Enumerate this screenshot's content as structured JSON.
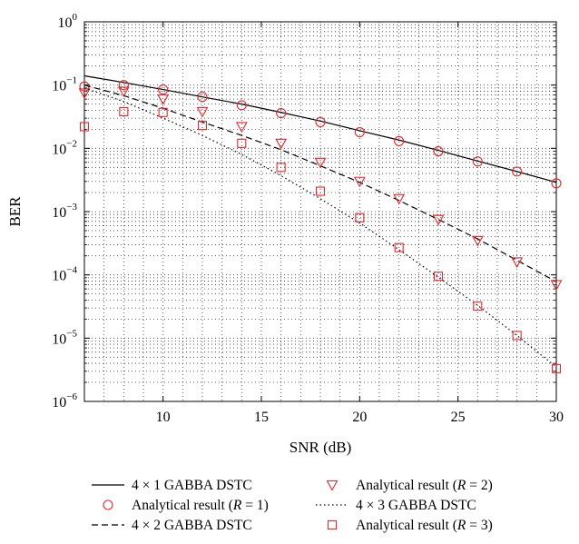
{
  "chart_data": {
    "type": "line",
    "xlabel": "SNR (dB)",
    "ylabel": "BER",
    "xlim": [
      6,
      30
    ],
    "ylim": [
      1e-06,
      1
    ],
    "yscale": "log",
    "grid": true,
    "x_ticks": [
      {
        "value": 10,
        "label": "10"
      },
      {
        "value": 15,
        "label": "15"
      },
      {
        "value": 20,
        "label": "20"
      },
      {
        "value": 25,
        "label": "25"
      },
      {
        "value": 30,
        "label": "30"
      }
    ],
    "y_ticks": [
      {
        "value": 1,
        "base": "10",
        "exp": "0"
      },
      {
        "value": 0.1,
        "base": "10",
        "exp": "−1"
      },
      {
        "value": 0.01,
        "base": "10",
        "exp": "−2"
      },
      {
        "value": 0.001,
        "base": "10",
        "exp": "−3"
      },
      {
        "value": 0.0001,
        "base": "10",
        "exp": "−4"
      },
      {
        "value": 1e-05,
        "base": "10",
        "exp": "−5"
      },
      {
        "value": 1e-06,
        "base": "10",
        "exp": "−6"
      }
    ],
    "legend_position": "bottom",
    "series": [
      {
        "name": "4 × 1 GABBA DSTC",
        "kind": "line",
        "dash": "solid",
        "color": "#000000",
        "x": [
          6,
          8,
          10,
          12,
          14,
          16,
          18,
          20,
          22,
          24,
          26,
          28,
          30
        ],
        "y": [
          0.14,
          0.11,
          0.085,
          0.065,
          0.05,
          0.037,
          0.027,
          0.019,
          0.0135,
          0.0093,
          0.0063,
          0.0043,
          0.0029
        ]
      },
      {
        "name": "Analytical result (R = 1)",
        "kind": "marker",
        "marker": "circle",
        "color": "#e8262b",
        "x": [
          6,
          8,
          10,
          12,
          14,
          16,
          18,
          20,
          22,
          24,
          26,
          28,
          30
        ],
        "y": [
          0.095,
          0.1,
          0.085,
          0.065,
          0.048,
          0.036,
          0.026,
          0.018,
          0.013,
          0.009,
          0.0062,
          0.0043,
          0.0028
        ]
      },
      {
        "name": "4 × 2 GABBA DSTC",
        "kind": "line",
        "dash": "dashed",
        "color": "#000000",
        "x": [
          6,
          8,
          10,
          12,
          14,
          16,
          18,
          20,
          22,
          24,
          26,
          28,
          30
        ],
        "y": [
          0.1,
          0.068,
          0.043,
          0.026,
          0.016,
          0.0095,
          0.0053,
          0.0029,
          0.0015,
          0.00075,
          0.00037,
          0.00017,
          7.8e-05
        ]
      },
      {
        "name": "Analytical result (R = 2)",
        "kind": "marker",
        "marker": "triangle-down",
        "color": "#e8262b",
        "x": [
          6,
          8,
          10,
          12,
          14,
          16,
          18,
          20,
          22,
          24,
          26,
          28,
          30
        ],
        "y": [
          0.075,
          0.08,
          0.06,
          0.038,
          0.022,
          0.012,
          0.006,
          0.003,
          0.0016,
          0.00075,
          0.00035,
          0.00016,
          7e-05
        ]
      },
      {
        "name": "4 × 3 GABBA DSTC",
        "kind": "line",
        "dash": "dotted",
        "color": "#000000",
        "x": [
          6,
          8,
          10,
          12,
          14,
          16,
          18,
          20,
          22,
          24,
          26,
          28,
          30
        ],
        "y": [
          0.09,
          0.055,
          0.03,
          0.016,
          0.008,
          0.0037,
          0.0016,
          0.00066,
          0.00025,
          9.2e-05,
          3.3e-05,
          1.1e-05,
          3.5e-06
        ]
      },
      {
        "name": "Analytical result (R = 3)",
        "kind": "marker",
        "marker": "square",
        "color": "#e8262b",
        "x": [
          6,
          8,
          10,
          12,
          14,
          16,
          18,
          20,
          22,
          24,
          26,
          28,
          30
        ],
        "y": [
          0.022,
          0.038,
          0.037,
          0.023,
          0.012,
          0.005,
          0.0021,
          0.0008,
          0.00027,
          9.5e-05,
          3.2e-05,
          1.1e-05,
          3.3e-06
        ]
      }
    ]
  }
}
